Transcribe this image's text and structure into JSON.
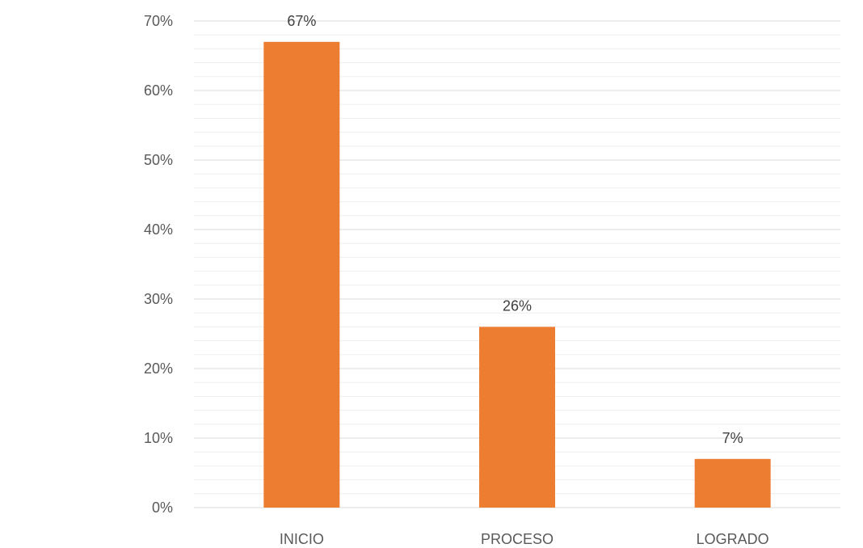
{
  "chart_data": {
    "type": "bar",
    "title": "",
    "xlabel": "",
    "ylabel": "",
    "categories": [
      "INICIO",
      "PROCESO",
      "LOGRADO"
    ],
    "values": [
      67,
      26,
      7
    ],
    "data_labels": [
      "67%",
      "26%",
      "7%"
    ],
    "ylim": [
      0,
      70
    ],
    "yticks": [
      0,
      10,
      20,
      30,
      40,
      50,
      60,
      70
    ],
    "ytick_labels": [
      "0%",
      "10%",
      "20%",
      "30%",
      "40%",
      "50%",
      "60%",
      "70%"
    ],
    "grid": true,
    "minor_grid": true,
    "legend": "none",
    "bar_color": "#ED7D31",
    "gridline_color": "#D9D9D9"
  }
}
